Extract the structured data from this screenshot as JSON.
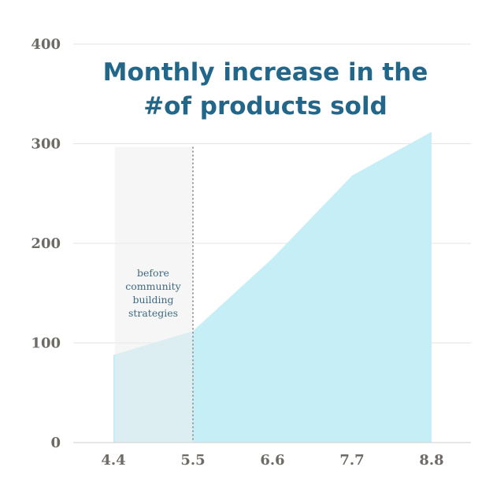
{
  "chart_data": {
    "type": "area",
    "title": [
      "Monthly increase in the",
      "#of products sold"
    ],
    "xlabel": "",
    "ylabel": "",
    "x": [
      4.4,
      5.5,
      6.6,
      7.7,
      8.8
    ],
    "x_tick_labels": [
      "4.4",
      "5.5",
      "6.6",
      "7.7",
      "8.8"
    ],
    "series": [
      {
        "values": [
          88,
          112,
          185,
          268,
          312
        ]
      }
    ],
    "ylim": [
      0,
      400
    ],
    "yticks": [
      0,
      100,
      200,
      300,
      400
    ],
    "y_tick_labels": [
      "0",
      "100",
      "200",
      "300",
      "400"
    ],
    "grid": true,
    "highlight_region": {
      "x_start": 4.4,
      "x_end": 5.5,
      "y_top": 300,
      "label": [
        "before",
        "community",
        "building",
        "strategies"
      ]
    },
    "colors": {
      "area": "#c6eef7",
      "highlight": "#efefef",
      "title": "#22678a",
      "ticks": "#6e6a65",
      "grid": "#e4e4e4",
      "annotation": "#3e6a80",
      "divider": "#999999"
    }
  }
}
